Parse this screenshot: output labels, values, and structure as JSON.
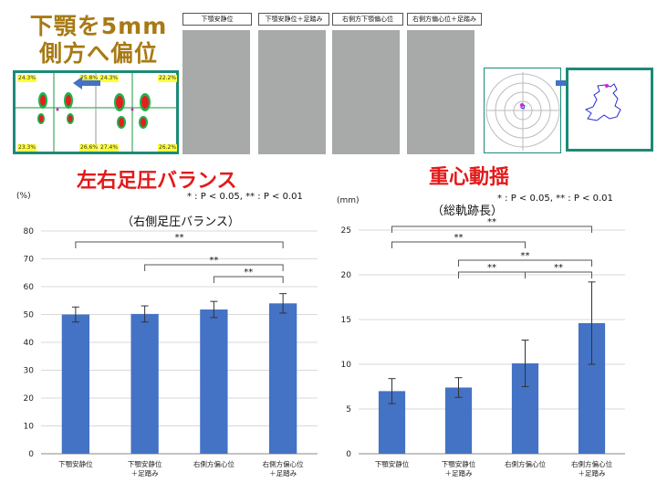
{
  "header": {
    "title_line1": "下顎を5mm",
    "title_line2": "側方へ偏位",
    "balance_title": "左右足圧バランス",
    "sway_title": "重心動揺",
    "photo_labels": [
      "下顎安静位",
      "下顎安静位＋足踏み",
      "右側方下顎偏心位",
      "右側方偏心位＋足踏み"
    ],
    "footprint_values": {
      "left_top_left": "24.3%",
      "left_top_right": "25.8%",
      "left_bottom_left": "23.3%",
      "left_bottom_right": "26.6%",
      "right_top_left": "24.3%",
      "right_top_right": "22.2%",
      "right_bottom_left": "27.4%",
      "right_bottom_right": "26.2%"
    }
  },
  "colors": {
    "bar": "#4472c4",
    "title_gold": "#a87a14",
    "section_red": "#e21a1a",
    "frame": "#1c8a78",
    "arrow": "#4472c4"
  },
  "chart_data": [
    {
      "type": "bar",
      "title": "（右側足圧バランス）",
      "unit_label": "(%)",
      "significance_note": "* : P < 0.05, ** : P < 0.01",
      "categories": [
        "下顎安静位",
        "下顎安静位\n＋足踏み",
        "右側方偏心位",
        "右側方偏心位\n＋足踏み"
      ],
      "values": [
        50.0,
        50.2,
        51.8,
        54.0
      ],
      "errors": [
        2.7,
        2.9,
        2.9,
        3.5
      ],
      "ylim": [
        0,
        80
      ],
      "yticks": [
        0,
        10,
        20,
        30,
        40,
        50,
        60,
        70,
        80
      ],
      "grid": true,
      "brackets": [
        {
          "from": 0,
          "to": 3,
          "label": "**"
        },
        {
          "from": 1,
          "to": 3,
          "label": "**"
        },
        {
          "from": 2,
          "to": 3,
          "label": "**"
        }
      ]
    },
    {
      "type": "bar",
      "title": "（総軌跡長）",
      "unit_label": "(mm)",
      "significance_note": "* : P < 0.05, ** : P < 0.01",
      "categories": [
        "下顎安静位",
        "下顎安静位\n＋足踏み",
        "右側方偏心位",
        "右側方偏心位\n＋足踏み"
      ],
      "values": [
        7.0,
        7.4,
        10.1,
        14.6
      ],
      "errors": [
        1.4,
        1.1,
        2.6,
        4.6
      ],
      "ylim": [
        0,
        25
      ],
      "yticks": [
        0,
        5,
        10,
        15,
        20,
        25
      ],
      "grid": true,
      "brackets": [
        {
          "from": 0,
          "to": 3,
          "label": "**"
        },
        {
          "from": 0,
          "to": 2,
          "label": "**"
        },
        {
          "from": 1,
          "to": 3,
          "label": "**"
        },
        {
          "from": 1,
          "to": 2,
          "label": "**"
        },
        {
          "from": 2,
          "to": 3,
          "label": "**"
        }
      ]
    }
  ]
}
